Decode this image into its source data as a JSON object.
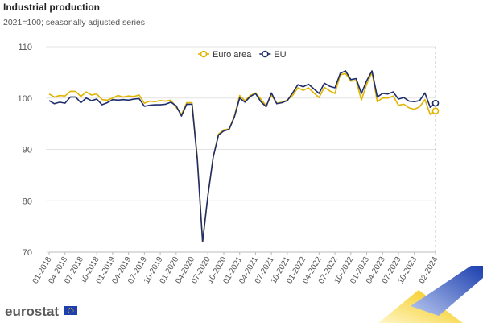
{
  "chart_data": {
    "type": "line",
    "title": "Industrial production",
    "subtitle": "2021=100; seasonally adjusted series",
    "source": "eurostat",
    "categories": [
      "01-2018",
      null,
      null,
      "04-2018",
      null,
      null,
      "07-2018",
      null,
      null,
      "10-2018",
      null,
      null,
      "01-2019",
      null,
      null,
      "04-2019",
      null,
      null,
      "07-2019",
      null,
      null,
      "10-2019",
      null,
      null,
      "01-2020",
      null,
      null,
      "04-2020",
      null,
      null,
      "07-2020",
      null,
      null,
      "10-2020",
      null,
      null,
      "01-2021",
      null,
      null,
      "04-2021",
      null,
      null,
      "07-2021",
      null,
      null,
      "10-2021",
      null,
      null,
      "01-2022",
      null,
      null,
      "04-2022",
      null,
      null,
      "07-2022",
      null,
      null,
      "10-2022",
      null,
      null,
      "01-2023",
      null,
      null,
      "04-2023",
      null,
      null,
      "07-2023",
      null,
      null,
      "10-2023",
      null,
      null,
      null,
      "02-2024"
    ],
    "series": [
      {
        "name": "Euro area",
        "color": "#e0b400",
        "values": [
          100.8,
          100.2,
          100.5,
          100.4,
          101.3,
          101.3,
          100.3,
          101.2,
          100.6,
          100.8,
          99.7,
          99.6,
          100.0,
          100.5,
          100.2,
          100.4,
          100.3,
          100.6,
          99.0,
          99.4,
          99.3,
          99.5,
          99.4,
          99.6,
          98.2,
          96.8,
          99.1,
          99.1,
          88.5,
          72.0,
          81.0,
          88.5,
          93.0,
          93.8,
          94.0,
          96.5,
          100.5,
          99.5,
          100.5,
          101.0,
          99.8,
          98.5,
          100.6,
          99.0,
          99.2,
          99.6,
          100.5,
          102.0,
          101.5,
          102.0,
          101.0,
          100.1,
          102.1,
          101.4,
          100.9,
          104.5,
          104.8,
          103.3,
          103.4,
          99.6,
          102.7,
          105.0,
          99.3,
          100.0,
          100.0,
          100.4,
          98.6,
          98.8,
          98.1,
          97.8,
          98.3,
          99.7,
          96.8,
          97.5
        ]
      },
      {
        "name": "EU",
        "color": "#1f2d6b",
        "values": [
          99.5,
          98.9,
          99.2,
          99.0,
          100.2,
          100.2,
          99.1,
          100.0,
          99.5,
          99.8,
          98.7,
          99.1,
          99.7,
          99.6,
          99.7,
          99.6,
          99.8,
          99.9,
          98.4,
          98.6,
          98.7,
          98.7,
          98.8,
          99.2,
          98.5,
          96.5,
          98.8,
          98.8,
          88.0,
          72.0,
          81.0,
          88.5,
          92.8,
          93.6,
          93.9,
          96.3,
          100.0,
          99.2,
          100.3,
          100.9,
          99.3,
          98.3,
          101.0,
          98.9,
          99.1,
          99.5,
          101.0,
          102.6,
          102.2,
          102.7,
          101.8,
          100.9,
          102.9,
          102.3,
          102.0,
          104.8,
          105.3,
          103.6,
          103.8,
          100.9,
          103.4,
          105.3,
          100.2,
          100.9,
          100.8,
          101.2,
          99.8,
          100.1,
          99.4,
          99.3,
          99.5,
          101.0,
          98.2,
          99.0
        ]
      }
    ],
    "ylim": [
      70,
      110
    ],
    "yticks": [
      70,
      80,
      90,
      100,
      110
    ],
    "grid": true,
    "legend": "top"
  }
}
